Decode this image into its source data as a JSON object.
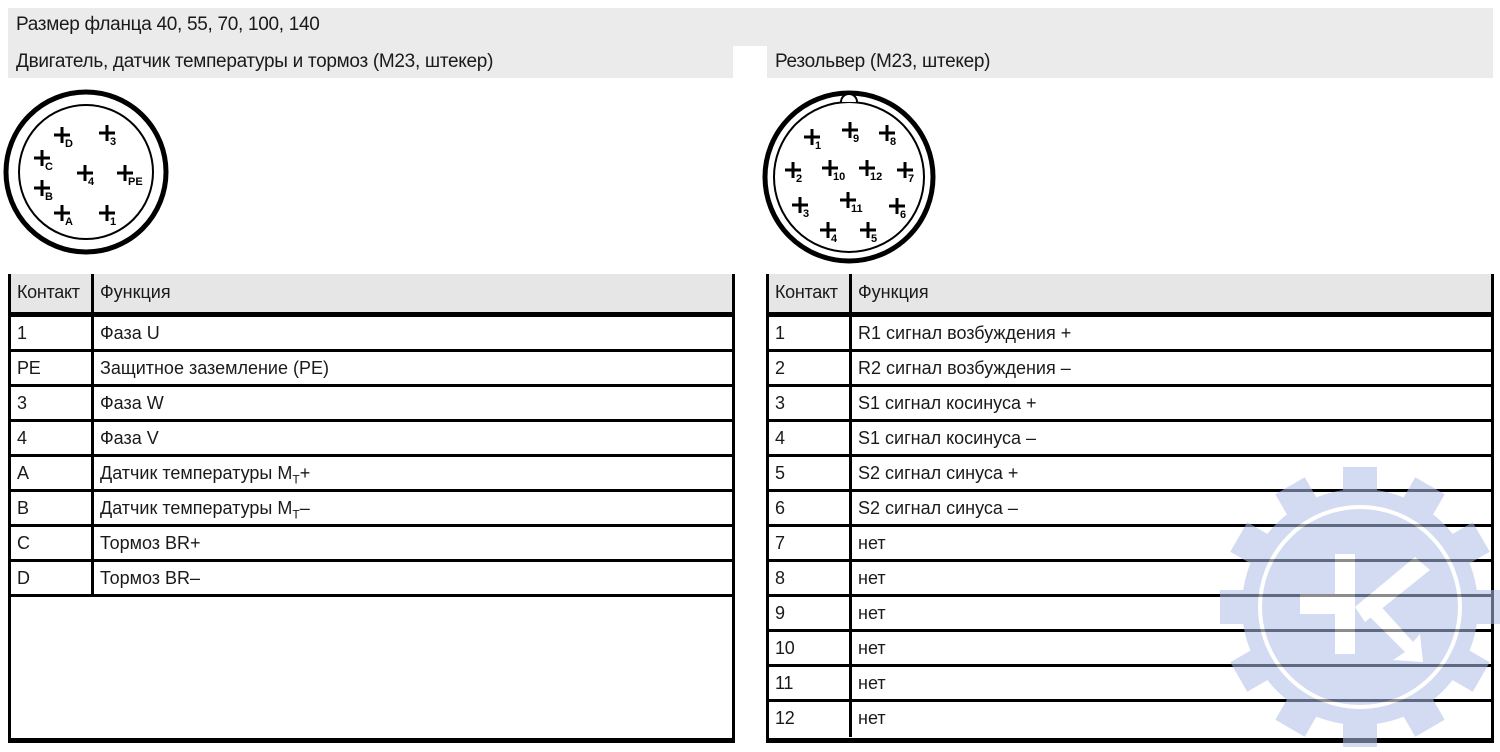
{
  "header": {
    "title": "Размер фланца 40, 55, 70, 100, 140",
    "left_subtitle": "Двигатель, датчик температуры и тормоз (M23, штекер)",
    "right_subtitle": "Резольвер (M23, штекер)"
  },
  "left_connector": {
    "pins": [
      "D",
      "3",
      "C",
      "4",
      "PE",
      "B",
      "A",
      "1"
    ]
  },
  "right_connector": {
    "pins": [
      "1",
      "9",
      "8",
      "2",
      "10",
      "12",
      "7",
      "3",
      "11",
      "6",
      "4",
      "5"
    ]
  },
  "left_table": {
    "columns": [
      "Контакт",
      "Функция"
    ],
    "rows": [
      {
        "contact": "1",
        "function": "Фаза U"
      },
      {
        "contact": "PE",
        "function": "Защитное заземление (PE)"
      },
      {
        "contact": "3",
        "function": "Фаза W"
      },
      {
        "contact": "4",
        "function": "Фаза V"
      },
      {
        "contact": "A",
        "function": "Датчик температуры M",
        "sub": "T",
        "suffix": "+"
      },
      {
        "contact": "B",
        "function": "Датчик температуры M",
        "sub": "T",
        "suffix": "–"
      },
      {
        "contact": "C",
        "function": "Тормоз BR+"
      },
      {
        "contact": "D",
        "function": "Тормоз BR–"
      }
    ]
  },
  "right_table": {
    "columns": [
      "Контакт",
      "Функция"
    ],
    "rows": [
      {
        "contact": "1",
        "function": "R1 сигнал возбуждения +"
      },
      {
        "contact": "2",
        "function": "R2 сигнал возбуждения –"
      },
      {
        "contact": "3",
        "function": "S1 сигнал косинуса +"
      },
      {
        "contact": "4",
        "function": "S1 сигнал косинуса –"
      },
      {
        "contact": "5",
        "function": "S2 сигнал синуса +"
      },
      {
        "contact": "6",
        "function": "S2 сигнал синуса –"
      },
      {
        "contact": "7",
        "function": "нет"
      },
      {
        "contact": "8",
        "function": "нет"
      },
      {
        "contact": "9",
        "function": "нет"
      },
      {
        "contact": "10",
        "function": "нет"
      },
      {
        "contact": "11",
        "function": "нет"
      },
      {
        "contact": "12",
        "function": "нет"
      }
    ]
  },
  "watermark": {
    "icon": "gear-k-logo",
    "color": "#aebfe8"
  }
}
